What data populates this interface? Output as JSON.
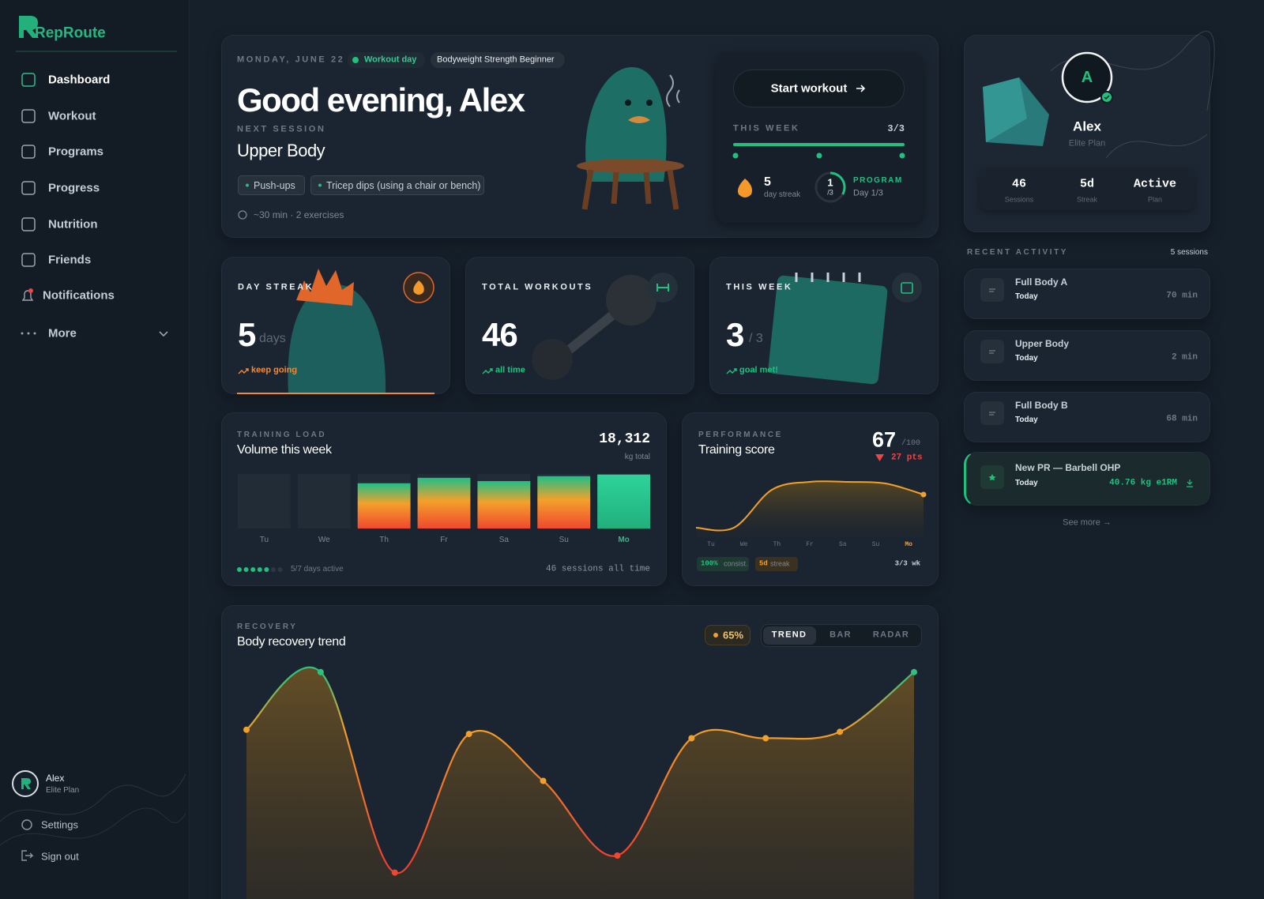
{
  "brand": "RepRoute",
  "nav": [
    "Dashboard",
    "Workout",
    "Programs",
    "Progress",
    "Nutrition",
    "Friends",
    "Notifications",
    "More"
  ],
  "sidebar_user": {
    "name": "Alex",
    "plan": "Elite Plan",
    "settings": "Settings",
    "sign_out": "Sign out"
  },
  "hero": {
    "date": "MONDAY, JUNE 22",
    "badge": "Workout day",
    "program": "Bodyweight Strength Beginner",
    "greeting": "Good evening, Alex",
    "next_label": "NEXT SESSION",
    "session": "Upper Body",
    "exercises": [
      "Push-ups",
      "Tricep dips (using a chair or bench)"
    ],
    "meta": "~30 min · 2 exercises"
  },
  "start": {
    "button": "Start workout",
    "week_label": "THIS WEEK",
    "week_value": "3/3",
    "streak": "5",
    "streak_label": "day streak",
    "ring_value": "1",
    "ring_total": "/3",
    "program_label": "PROGRAM",
    "program_day": "Day 1/3"
  },
  "stats": [
    {
      "label": "DAY STREAK",
      "value": "5",
      "unit": "days",
      "trend": "keep going"
    },
    {
      "label": "TOTAL WORKOUTS",
      "value": "46",
      "trend": "all time"
    },
    {
      "label": "THIS WEEK",
      "value": "3",
      "unit": "/ 3",
      "trend": "goal met!"
    }
  ],
  "volume": {
    "label": "TRAINING LOAD",
    "title": "Volume this week",
    "total": "18,312",
    "total_unit": "kg total",
    "days_active": "5/7 days active",
    "sessions": "46 sessions all time"
  },
  "volume_chart": {
    "type": "bar",
    "categories": [
      "Tu",
      "We",
      "Th",
      "Fr",
      "Sa",
      "Su",
      "Mo"
    ],
    "values": [
      0,
      0,
      83,
      93,
      87,
      96,
      99
    ],
    "ylim": [
      0,
      100
    ]
  },
  "performance": {
    "label": "PERFORMANCE",
    "title": "Training score",
    "score": "67",
    "score_max": "/100",
    "change": "27 pts",
    "chips": [
      {
        "strong": "100%",
        "text": "consist."
      },
      {
        "strong": "5d",
        "text": "streak"
      }
    ],
    "week": "3/3 wk"
  },
  "performance_chart": {
    "type": "line",
    "categories": [
      "Tu",
      "We",
      "Th",
      "Fr",
      "Sa",
      "Su",
      "Mo"
    ],
    "values": [
      12,
      12,
      60,
      70,
      70,
      68,
      54
    ],
    "ylim": [
      0,
      100
    ]
  },
  "recovery": {
    "label": "RECOVERY",
    "title": "Body recovery trend",
    "percent": "65%",
    "tabs": [
      "TREND",
      "BAR",
      "RADAR"
    ]
  },
  "recovery_chart": {
    "type": "line",
    "values": [
      69,
      96,
      2,
      67,
      45,
      10,
      65,
      65,
      68,
      96
    ],
    "ylim": [
      0,
      100
    ]
  },
  "profile": {
    "initial": "A",
    "name": "Alex",
    "plan": "Elite Plan",
    "stats": [
      {
        "value": "46",
        "label": "Sessions"
      },
      {
        "value": "5d",
        "label": "Streak"
      },
      {
        "value": "Active",
        "label": "Plan"
      }
    ]
  },
  "activity": {
    "label": "RECENT ACTIVITY",
    "count": "5 sessions",
    "items": [
      {
        "title": "Full Body A",
        "when": "Today",
        "value": "70 min"
      },
      {
        "title": "Upper Body",
        "when": "Today",
        "value": "2 min"
      },
      {
        "title": "Full Body B",
        "when": "Today",
        "value": "68 min"
      },
      {
        "title": "New PR — Barbell OHP",
        "when": "Today",
        "value": "40.76 kg e1RM"
      }
    ],
    "see_more": "See more →"
  }
}
